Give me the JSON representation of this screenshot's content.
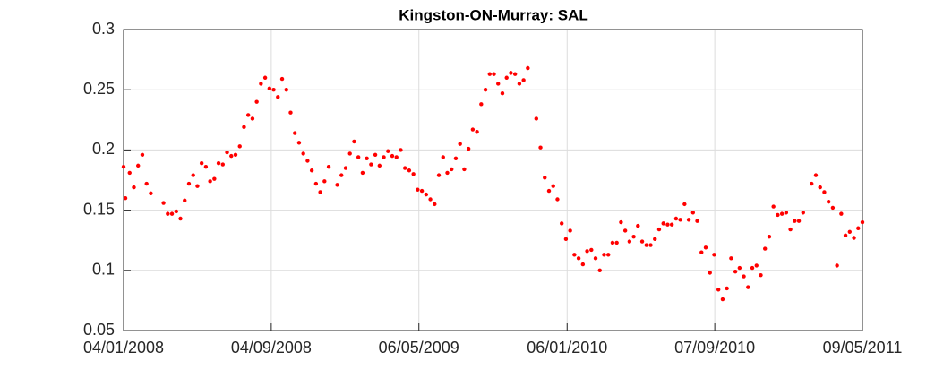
{
  "chart_data": {
    "type": "scatter",
    "title": "Kingston-ON-Murray: SAL",
    "color": "#ff0000",
    "grid": true,
    "xlim": [
      "2008-01-04",
      "2011-05-09"
    ],
    "xticks": [
      {
        "value": "2008-01-04",
        "label": "04/01/2008"
      },
      {
        "value": "2008-09-04",
        "label": "04/09/2008"
      },
      {
        "value": "2009-05-06",
        "label": "06/05/2009"
      },
      {
        "value": "2010-01-06",
        "label": "06/01/2010"
      },
      {
        "value": "2010-09-07",
        "label": "07/09/2010"
      },
      {
        "value": "2011-05-09",
        "label": "09/05/2011"
      }
    ],
    "ylim": [
      0.05,
      0.3
    ],
    "yticks": [
      0.05,
      0.1,
      0.15,
      0.2,
      0.25,
      0.3
    ],
    "x": [
      "2008-01-04",
      "2008-01-07",
      "2008-01-14",
      "2008-01-21",
      "2008-01-28",
      "2008-02-04",
      "2008-02-11",
      "2008-02-18",
      "2008-03-10",
      "2008-03-17",
      "2008-03-24",
      "2008-03-31",
      "2008-04-07",
      "2008-04-14",
      "2008-04-21",
      "2008-04-28",
      "2008-05-05",
      "2008-05-12",
      "2008-05-19",
      "2008-05-26",
      "2008-06-02",
      "2008-06-09",
      "2008-06-16",
      "2008-06-23",
      "2008-06-30",
      "2008-07-07",
      "2008-07-14",
      "2008-07-21",
      "2008-07-28",
      "2008-08-04",
      "2008-08-11",
      "2008-08-18",
      "2008-08-25",
      "2008-09-01",
      "2008-09-08",
      "2008-09-15",
      "2008-09-22",
      "2008-09-29",
      "2008-10-06",
      "2008-10-13",
      "2008-10-20",
      "2008-10-27",
      "2008-11-03",
      "2008-11-10",
      "2008-11-17",
      "2008-11-24",
      "2008-12-01",
      "2008-12-08",
      "2008-12-22",
      "2008-12-29",
      "2009-01-05",
      "2009-01-12",
      "2009-01-19",
      "2009-01-26",
      "2009-02-02",
      "2009-02-09",
      "2009-02-16",
      "2009-02-23",
      "2009-03-02",
      "2009-03-09",
      "2009-03-16",
      "2009-03-23",
      "2009-03-30",
      "2009-04-06",
      "2009-04-13",
      "2009-04-20",
      "2009-04-27",
      "2009-05-04",
      "2009-05-11",
      "2009-05-18",
      "2009-05-25",
      "2009-06-01",
      "2009-06-08",
      "2009-06-15",
      "2009-06-22",
      "2009-06-29",
      "2009-07-06",
      "2009-07-13",
      "2009-07-20",
      "2009-07-27",
      "2009-08-03",
      "2009-08-10",
      "2009-08-17",
      "2009-08-24",
      "2009-08-31",
      "2009-09-07",
      "2009-09-14",
      "2009-09-21",
      "2009-09-28",
      "2009-10-05",
      "2009-10-12",
      "2009-10-19",
      "2009-10-26",
      "2009-11-02",
      "2009-11-16",
      "2009-11-23",
      "2009-11-30",
      "2009-12-07",
      "2009-12-14",
      "2009-12-21",
      "2009-12-28",
      "2010-01-04",
      "2010-01-11",
      "2010-01-18",
      "2010-01-25",
      "2010-02-01",
      "2010-02-08",
      "2010-02-15",
      "2010-02-22",
      "2010-03-01",
      "2010-03-08",
      "2010-03-15",
      "2010-03-22",
      "2010-03-29",
      "2010-04-05",
      "2010-04-12",
      "2010-04-19",
      "2010-04-26",
      "2010-05-03",
      "2010-05-10",
      "2010-05-17",
      "2010-05-24",
      "2010-05-31",
      "2010-06-07",
      "2010-06-14",
      "2010-06-21",
      "2010-06-28",
      "2010-07-05",
      "2010-07-12",
      "2010-07-19",
      "2010-07-26",
      "2010-08-02",
      "2010-08-09",
      "2010-08-16",
      "2010-08-23",
      "2010-08-30",
      "2010-09-06",
      "2010-09-13",
      "2010-09-20",
      "2010-09-27",
      "2010-10-04",
      "2010-10-11",
      "2010-10-18",
      "2010-10-25",
      "2010-11-01",
      "2010-11-08",
      "2010-11-15",
      "2010-11-22",
      "2010-11-29",
      "2010-12-06",
      "2010-12-13",
      "2010-12-20",
      "2010-12-27",
      "2011-01-03",
      "2011-01-10",
      "2011-01-17",
      "2011-01-24",
      "2011-01-31",
      "2011-02-14",
      "2011-02-21",
      "2011-02-28",
      "2011-03-07",
      "2011-03-14",
      "2011-03-21",
      "2011-03-28",
      "2011-04-04",
      "2011-04-11",
      "2011-04-18",
      "2011-04-25",
      "2011-05-02",
      "2011-05-09"
    ],
    "values": [
      0.186,
      0.16,
      0.181,
      0.169,
      0.187,
      0.196,
      0.172,
      0.164,
      0.156,
      0.147,
      0.147,
      0.149,
      0.143,
      0.158,
      0.172,
      0.179,
      0.17,
      0.189,
      0.186,
      0.174,
      0.176,
      0.189,
      0.188,
      0.198,
      0.195,
      0.196,
      0.203,
      0.219,
      0.229,
      0.226,
      0.24,
      0.255,
      0.26,
      0.251,
      0.25,
      0.244,
      0.259,
      0.25,
      0.231,
      0.214,
      0.206,
      0.197,
      0.191,
      0.183,
      0.172,
      0.165,
      0.174,
      0.186,
      0.171,
      0.179,
      0.185,
      0.197,
      0.207,
      0.194,
      0.181,
      0.193,
      0.188,
      0.196,
      0.187,
      0.194,
      0.199,
      0.195,
      0.194,
      0.2,
      0.185,
      0.183,
      0.18,
      0.167,
      0.166,
      0.163,
      0.159,
      0.155,
      0.179,
      0.194,
      0.181,
      0.184,
      0.193,
      0.205,
      0.184,
      0.201,
      0.217,
      0.215,
      0.238,
      0.25,
      0.263,
      0.263,
      0.255,
      0.247,
      0.26,
      0.264,
      0.263,
      0.255,
      0.258,
      0.268,
      0.226,
      0.202,
      0.177,
      0.166,
      0.17,
      0.159,
      0.139,
      0.126,
      0.133,
      0.113,
      0.11,
      0.105,
      0.116,
      0.117,
      0.11,
      0.1,
      0.113,
      0.113,
      0.123,
      0.123,
      0.14,
      0.133,
      0.124,
      0.128,
      0.137,
      0.124,
      0.121,
      0.121,
      0.126,
      0.134,
      0.139,
      0.138,
      0.138,
      0.143,
      0.142,
      0.155,
      0.142,
      0.148,
      0.141,
      0.115,
      0.119,
      0.098,
      0.113,
      0.084,
      0.076,
      0.085,
      0.11,
      0.099,
      0.102,
      0.095,
      0.086,
      0.102,
      0.104,
      0.096,
      0.118,
      0.128,
      0.153,
      0.146,
      0.147,
      0.148,
      0.134,
      0.141,
      0.141,
      0.148,
      0.172,
      0.179,
      0.169,
      0.165,
      0.157,
      0.152,
      0.104,
      0.147,
      0.129,
      0.132,
      0.127,
      0.135,
      0.14
    ]
  }
}
